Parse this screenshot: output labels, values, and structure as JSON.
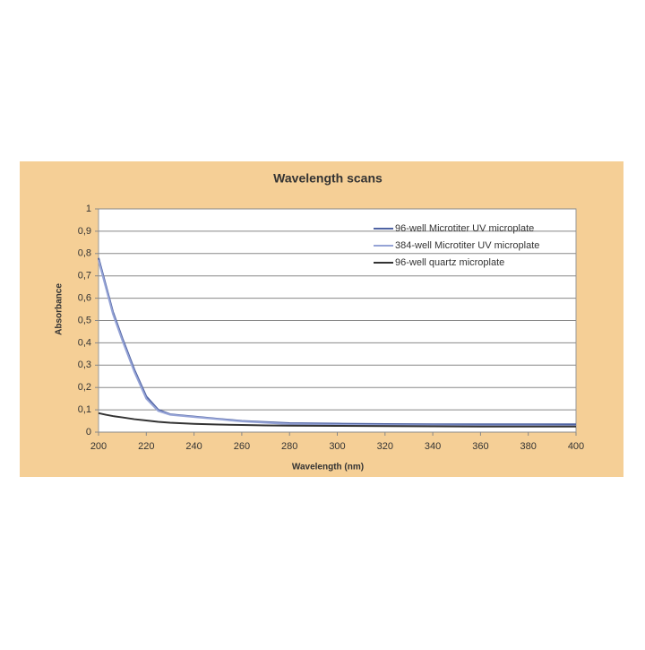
{
  "chart_data": {
    "type": "line",
    "title": "Wavelength scans",
    "xlabel": "Wavelength (nm)",
    "ylabel": "Absorbance",
    "x": [
      200,
      203,
      206,
      210,
      215,
      220,
      225,
      230,
      240,
      250,
      260,
      270,
      280,
      300,
      320,
      340,
      360,
      380,
      400
    ],
    "series": [
      {
        "name": "96-well Microtiter UV microplate",
        "color": "#4f63a3",
        "values": [
          0.78,
          0.66,
          0.54,
          0.42,
          0.28,
          0.16,
          0.1,
          0.08,
          0.07,
          0.06,
          0.05,
          0.045,
          0.04,
          0.038,
          0.036,
          0.035,
          0.035,
          0.035,
          0.035
        ]
      },
      {
        "name": "384-well Microtiter UV microplate",
        "color": "#95a3d6",
        "values": [
          0.77,
          0.65,
          0.53,
          0.41,
          0.27,
          0.15,
          0.095,
          0.078,
          0.068,
          0.058,
          0.048,
          0.042,
          0.036,
          0.033,
          0.031,
          0.03,
          0.029,
          0.029,
          0.028
        ]
      },
      {
        "name": "96-well quartz microplate",
        "color": "#333333",
        "values": [
          0.085,
          0.078,
          0.072,
          0.066,
          0.058,
          0.052,
          0.046,
          0.042,
          0.037,
          0.034,
          0.032,
          0.03,
          0.029,
          0.028,
          0.027,
          0.026,
          0.025,
          0.025,
          0.025
        ]
      }
    ],
    "xlim": [
      200,
      400
    ],
    "xticks": [
      200,
      220,
      240,
      260,
      280,
      300,
      320,
      340,
      360,
      380,
      400
    ],
    "ylim": [
      0,
      1
    ],
    "yticks": [
      0,
      {
        "value": 0.1,
        "label": "0,1"
      },
      {
        "value": 0.2,
        "label": "0,2"
      },
      {
        "value": 0.3,
        "label": "0,3"
      },
      {
        "value": 0.4,
        "label": "0,4"
      },
      {
        "value": 0.5,
        "label": "0,5"
      },
      {
        "value": 0.6,
        "label": "0,6"
      },
      {
        "value": 0.7,
        "label": "0,7"
      },
      {
        "value": 0.8,
        "label": "0,8"
      },
      {
        "value": 0.9,
        "label": "0,9"
      },
      1
    ],
    "grid": true,
    "legend": "upper right"
  }
}
